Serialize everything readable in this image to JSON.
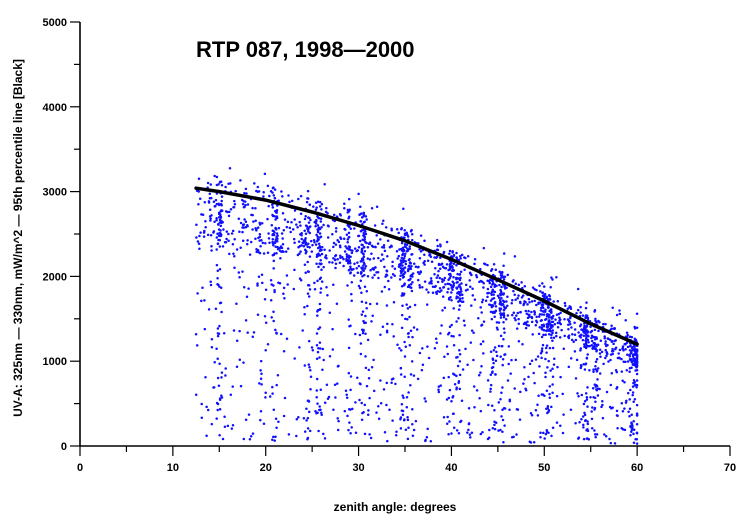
{
  "chart_data": {
    "type": "scatter",
    "title": "RTP 087, 1998—2000",
    "xlabel": "zenith angle: degrees",
    "ylabel": "UV-A: 325nm — 330nm, mW/m^2 — 95th percentile line [Black]",
    "xlim": [
      0,
      70
    ],
    "ylim": [
      0,
      5000
    ],
    "x_ticks": [
      0,
      10,
      20,
      30,
      40,
      50,
      60,
      70
    ],
    "x_ticks_minor": [
      5,
      15,
      25,
      35,
      45,
      55,
      65
    ],
    "y_ticks": [
      0,
      1000,
      2000,
      3000,
      4000,
      5000
    ],
    "y_ticks_minor": [
      500,
      1500,
      2500,
      3500,
      4500
    ],
    "grid": false,
    "series": [
      {
        "marker": "dot",
        "color": "#1010ff",
        "x_range": [
          12.5,
          60
        ],
        "y_range": [
          20,
          3450
        ]
      },
      {
        "mark": "line",
        "color": "#000000",
        "x": [
          12.5,
          15,
          20,
          25,
          30,
          35,
          40,
          45,
          50,
          55,
          60
        ],
        "y": [
          3040,
          3000,
          2900,
          2760,
          2600,
          2420,
          2200,
          1960,
          1710,
          1440,
          1200
        ]
      }
    ]
  }
}
